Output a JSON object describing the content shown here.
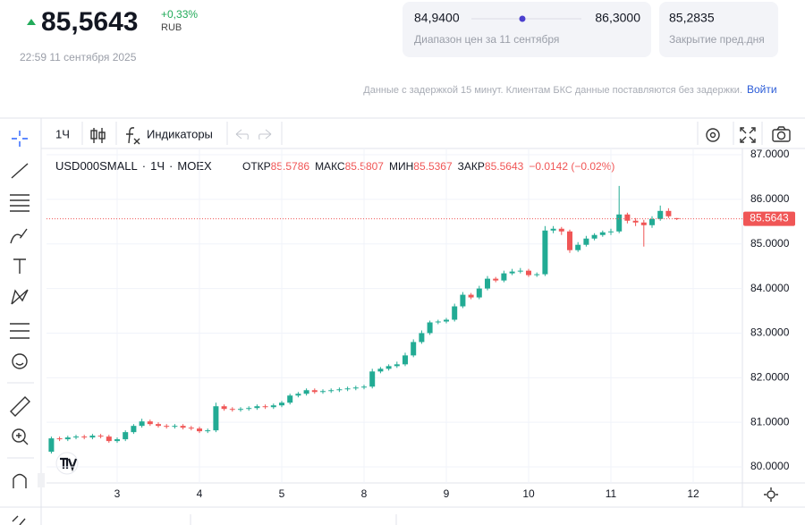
{
  "header": {
    "price": "85,5643",
    "change": "+0,33%",
    "currency": "RUB",
    "timestamp": "22:59 11 сентября 2025",
    "range_low": "84,9400",
    "range_high": "86,3000",
    "range_caption": "Диапазон цен за 11 сентября",
    "prev_close": "85,2835",
    "prev_close_caption": "Закрытие пред.дня",
    "notice": "Данные с задержкой 15 минут. Клиентам БКС данные поставляются без задержки.",
    "login": "Войти"
  },
  "toolbar": {
    "interval": "1Ч",
    "indicators": "Индикаторы"
  },
  "legend": {
    "symbol": "USD000SMALL",
    "interval": "1Ч",
    "exchange": "MOEX",
    "open_label": "ОТКР",
    "high_label": "МАКС",
    "low_label": "МИН",
    "close_label": "ЗАКР",
    "change": "−0.0142 (−0.02%)"
  },
  "chart_data": {
    "type": "candlestick",
    "up_color": "#22ab94",
    "down_color": "#f05656",
    "grid": true,
    "categories": [
      null,
      null,
      null,
      null,
      null,
      null,
      null,
      null,
      "3",
      null,
      null,
      null,
      null,
      null,
      null,
      null,
      null,
      null,
      "4",
      null,
      null,
      null,
      null,
      null,
      null,
      null,
      null,
      null,
      "5",
      null,
      null,
      null,
      null,
      null,
      null,
      null,
      null,
      null,
      "8",
      null,
      null,
      null,
      null,
      null,
      null,
      null,
      null,
      null,
      "9",
      null,
      null,
      null,
      null,
      null,
      null,
      null,
      null,
      null,
      "10",
      null,
      null,
      null,
      null,
      null,
      null,
      null,
      null,
      null,
      "11",
      null,
      null,
      null,
      null,
      null,
      null,
      null,
      null,
      null,
      "12"
    ],
    "open": [
      80.34,
      80.64,
      80.62,
      80.66,
      80.68,
      80.66,
      80.7,
      80.68,
      80.58,
      80.62,
      80.78,
      80.92,
      81.02,
      80.96,
      80.92,
      80.9,
      80.92,
      80.88,
      80.86,
      80.8,
      80.82,
      81.36,
      81.3,
      81.28,
      81.3,
      81.32,
      81.36,
      81.34,
      81.38,
      81.44,
      81.6,
      81.64,
      81.72,
      81.68,
      81.7,
      81.72,
      81.74,
      81.76,
      81.78,
      81.8,
      82.14,
      82.2,
      82.26,
      82.3,
      82.5,
      82.8,
      83.0,
      83.24,
      83.26,
      83.3,
      83.6,
      83.86,
      83.8,
      84.0,
      84.22,
      84.18,
      84.34,
      84.38,
      84.4,
      84.3,
      84.32,
      85.3,
      85.34,
      85.28,
      84.86,
      84.98,
      85.12,
      85.2,
      85.26,
      85.28,
      85.66,
      85.52,
      85.48,
      85.42,
      85.56,
      85.74,
      85.5786,
      null,
      null
    ],
    "high": [
      80.68,
      80.68,
      80.7,
      80.72,
      80.72,
      80.74,
      80.74,
      80.72,
      80.66,
      80.82,
      80.96,
      81.08,
      81.06,
      81.0,
      80.96,
      80.96,
      80.96,
      80.92,
      80.9,
      80.86,
      81.44,
      81.4,
      81.34,
      81.34,
      81.36,
      81.4,
      81.4,
      81.42,
      81.48,
      81.64,
      81.68,
      81.76,
      81.76,
      81.74,
      81.76,
      81.78,
      81.8,
      81.82,
      81.84,
      82.2,
      82.24,
      82.3,
      82.36,
      82.56,
      82.86,
      83.06,
      83.28,
      83.3,
      83.34,
      83.66,
      83.92,
      83.9,
      84.06,
      84.28,
      84.26,
      84.4,
      84.44,
      84.46,
      84.44,
      84.36,
      85.4,
      85.4,
      85.38,
      85.32,
      85.04,
      85.18,
      85.24,
      85.3,
      85.34,
      86.3,
      85.7,
      85.58,
      85.54,
      85.62,
      85.86,
      85.8,
      85.5807,
      null,
      null
    ],
    "low": [
      80.3,
      80.58,
      80.58,
      80.62,
      80.62,
      80.62,
      80.64,
      80.54,
      80.54,
      80.58,
      80.74,
      80.88,
      80.92,
      80.88,
      80.86,
      80.86,
      80.84,
      80.82,
      80.76,
      80.76,
      80.78,
      81.26,
      81.24,
      81.24,
      81.26,
      81.28,
      81.3,
      81.3,
      81.34,
      81.4,
      81.56,
      81.6,
      81.64,
      81.64,
      81.66,
      81.68,
      81.7,
      81.72,
      81.74,
      81.76,
      82.1,
      82.16,
      82.22,
      82.26,
      82.46,
      82.76,
      82.96,
      83.2,
      83.22,
      83.26,
      83.56,
      83.76,
      83.76,
      83.96,
      84.14,
      84.14,
      84.3,
      84.34,
      84.26,
      84.26,
      84.28,
      85.24,
      85.2,
      84.8,
      84.82,
      84.94,
      85.08,
      85.16,
      85.2,
      85.24,
      85.46,
      85.4,
      84.94,
      85.36,
      85.52,
      85.58,
      85.5367,
      null,
      null
    ],
    "close": [
      80.64,
      80.62,
      80.66,
      80.68,
      80.66,
      80.7,
      80.68,
      80.58,
      80.62,
      80.78,
      80.92,
      81.02,
      80.96,
      80.92,
      80.9,
      80.92,
      80.88,
      80.86,
      80.8,
      80.82,
      81.36,
      81.3,
      81.28,
      81.3,
      81.32,
      81.36,
      81.34,
      81.38,
      81.44,
      81.6,
      81.64,
      81.72,
      81.68,
      81.7,
      81.72,
      81.74,
      81.76,
      81.78,
      81.8,
      82.14,
      82.2,
      82.26,
      82.3,
      82.5,
      82.8,
      83.0,
      83.24,
      83.26,
      83.3,
      83.6,
      83.86,
      83.8,
      84.0,
      84.22,
      84.18,
      84.34,
      84.38,
      84.4,
      84.3,
      84.32,
      85.3,
      85.34,
      85.28,
      84.86,
      84.98,
      85.12,
      85.2,
      85.26,
      85.28,
      85.66,
      85.52,
      85.48,
      85.42,
      85.56,
      85.74,
      85.62,
      85.5643,
      null,
      null
    ],
    "ylim": [
      79.64,
      87.14
    ],
    "yticks": [
      {
        "value": 80,
        "label": "80.0000"
      },
      {
        "value": 81,
        "label": "81.0000"
      },
      {
        "value": 82,
        "label": "82.0000"
      },
      {
        "value": 83,
        "label": "83.0000"
      },
      {
        "value": 84,
        "label": "84.0000"
      },
      {
        "value": 85,
        "label": "85.0000"
      },
      {
        "value": 86,
        "label": "86.0000"
      },
      {
        "value": 87,
        "label": "87.0000"
      }
    ]
  }
}
